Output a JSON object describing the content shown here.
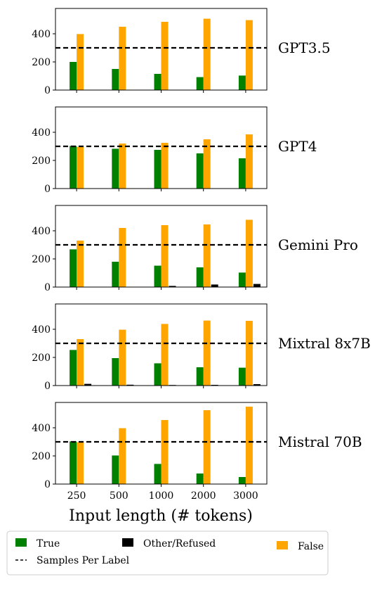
{
  "chart_data": {
    "type": "bar",
    "categories": [
      "250",
      "500",
      "1000",
      "2000",
      "3000"
    ],
    "xlabel": "Input length (# tokens)",
    "ylim": [
      0,
      580
    ],
    "yticks": [
      0,
      200,
      400
    ],
    "reference_line": {
      "label": "Samples Per Label",
      "value": 300
    },
    "colors": {
      "True": "#008000",
      "Other/Refused": "#000000",
      "False": "#FFA500"
    },
    "legend": {
      "placement": "bottom",
      "entries": [
        "True",
        "Other/Refused",
        "False",
        "Samples Per Label"
      ]
    },
    "panels": [
      {
        "model": "GPT3.5",
        "series": [
          {
            "name": "True",
            "values": [
              200,
              150,
              115,
              92,
              103
            ]
          },
          {
            "name": "Other/Refused",
            "values": [
              0,
              0,
              0,
              0,
              0
            ]
          },
          {
            "name": "False",
            "values": [
              398,
              450,
              485,
              507,
              497
            ]
          }
        ]
      },
      {
        "model": "GPT4",
        "series": [
          {
            "name": "True",
            "values": [
              303,
              283,
              275,
              250,
              215
            ]
          },
          {
            "name": "Other/Refused",
            "values": [
              0,
              0,
              0,
              0,
              0
            ]
          },
          {
            "name": "False",
            "values": [
              296,
              320,
              325,
              350,
              385
            ]
          }
        ]
      },
      {
        "model": "Gemini Pro",
        "series": [
          {
            "name": "True",
            "values": [
              268,
              180,
              152,
              140,
              103
            ]
          },
          {
            "name": "Other/Refused",
            "values": [
              0,
              0,
              8,
              18,
              22
            ]
          },
          {
            "name": "False",
            "values": [
              330,
              420,
              440,
              445,
              478
            ]
          }
        ]
      },
      {
        "model": "Mixtral 8x7B",
        "series": [
          {
            "name": "True",
            "values": [
              253,
              195,
              158,
              130,
              127
            ]
          },
          {
            "name": "Other/Refused",
            "values": [
              12,
              6,
              4,
              5,
              10
            ]
          },
          {
            "name": "False",
            "values": [
              330,
              397,
              438,
              462,
              460
            ]
          }
        ]
      },
      {
        "model": "Mistral 70B",
        "series": [
          {
            "name": "True",
            "values": [
              303,
              203,
              143,
              75,
              50
            ]
          },
          {
            "name": "Other/Refused",
            "values": [
              0,
              0,
              0,
              0,
              0
            ]
          },
          {
            "name": "False",
            "values": [
              297,
              397,
              455,
              525,
              550
            ]
          }
        ]
      }
    ]
  }
}
